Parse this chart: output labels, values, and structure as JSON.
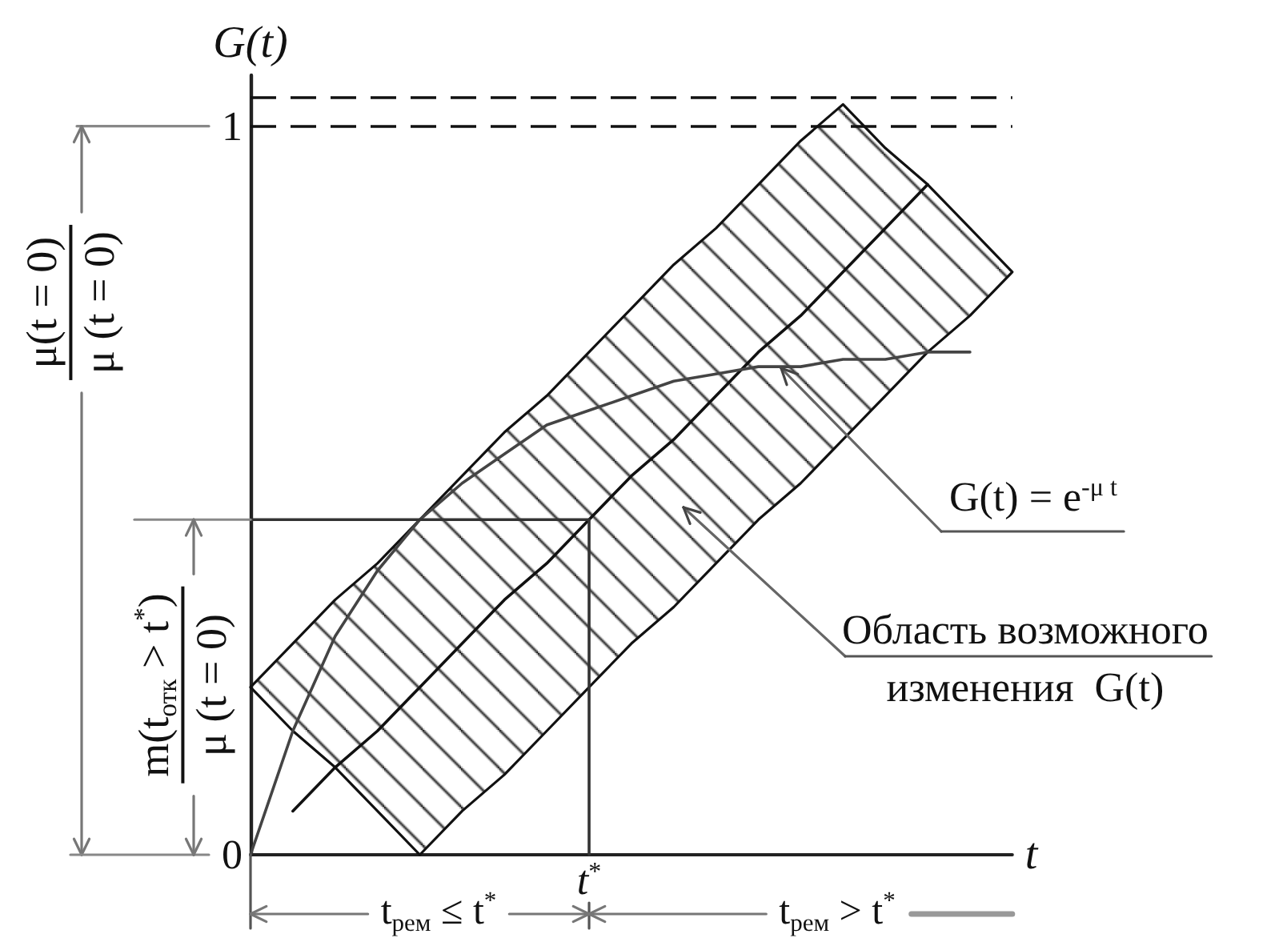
{
  "chart_data": {
    "type": "line",
    "xlabel": "t",
    "ylabel": "G(t)",
    "categories": [
      null,
      null,
      null,
      null,
      null,
      null,
      null,
      null,
      "t$^{*}$",
      null,
      null,
      null,
      null,
      null,
      null,
      null,
      null,
      null,
      null
    ],
    "ylim": [
      0,
      1.07
    ],
    "yticks": [
      0,
      1
    ],
    "marker": "none",
    "series": [
      {
        "color": "#111111",
        "values": [
          null,
          0.06,
          0.12,
          0.17,
          0.23,
          0.29,
          0.35,
          0.4,
          0.46,
          0.52,
          0.57,
          0.63,
          0.69,
          0.74,
          0.8,
          0.86,
          0.92,
          null,
          null
        ],
        "lower": [
          0.23,
          0.17,
          0.12,
          0.06,
          0,
          0.06,
          0.11,
          0.17,
          0.23,
          0.29,
          0.34,
          0.4,
          0.46,
          0.51,
          0.57,
          0.63,
          0.69,
          0.74,
          0.8
        ],
        "upper": [
          0.23,
          0.29,
          0.35,
          0.4,
          0.46,
          0.52,
          0.58,
          0.63,
          0.69,
          0.75,
          0.81,
          0.86,
          0.92,
          0.98,
          1.03,
          0.97,
          0.92,
          0.86,
          0.8
        ]
      },
      {
        "color": "#444444",
        "values": [
          0,
          0.17,
          0.3,
          0.39,
          0.46,
          0.51,
          0.55,
          0.59,
          0.61,
          0.63,
          0.65,
          0.66,
          0.67,
          0.67,
          0.68,
          0.68,
          0.69,
          0.69,
          null
        ]
      },
      {
        "color": "#333333",
        "values": [
          0.46,
          0.46,
          0.46,
          0.46,
          0.46,
          0.46,
          0.46,
          0.46,
          0.46,
          null,
          null,
          null,
          null,
          null,
          null,
          null,
          null,
          null,
          null
        ]
      },
      {
        "color": "#333333",
        "x": [
          "t$^{*}$",
          "t$^{*}$"
        ],
        "values": [
          0.46,
          0
        ]
      }
    ],
    "ref_lines": [
      {
        "axis": "y",
        "value": 1,
        "line_style": "dashed",
        "color": "#111111"
      },
      {
        "axis": "y",
        "value": 1.04,
        "line_style": "dashed",
        "color": "#111111"
      }
    ],
    "annotations": [
      "μ(t = 0)",
      "μ (t = 0)",
      "m(t$_{отк}$ > t$^{*}$)",
      "μ (t = 0)",
      "G(t) = e$^{-μ t}$",
      "Область возможного\nизменения  G(t)",
      "t$_{рем}$ ≤ t$^{*}$",
      "t$_{рем}$ > t$^{*}$"
    ]
  }
}
